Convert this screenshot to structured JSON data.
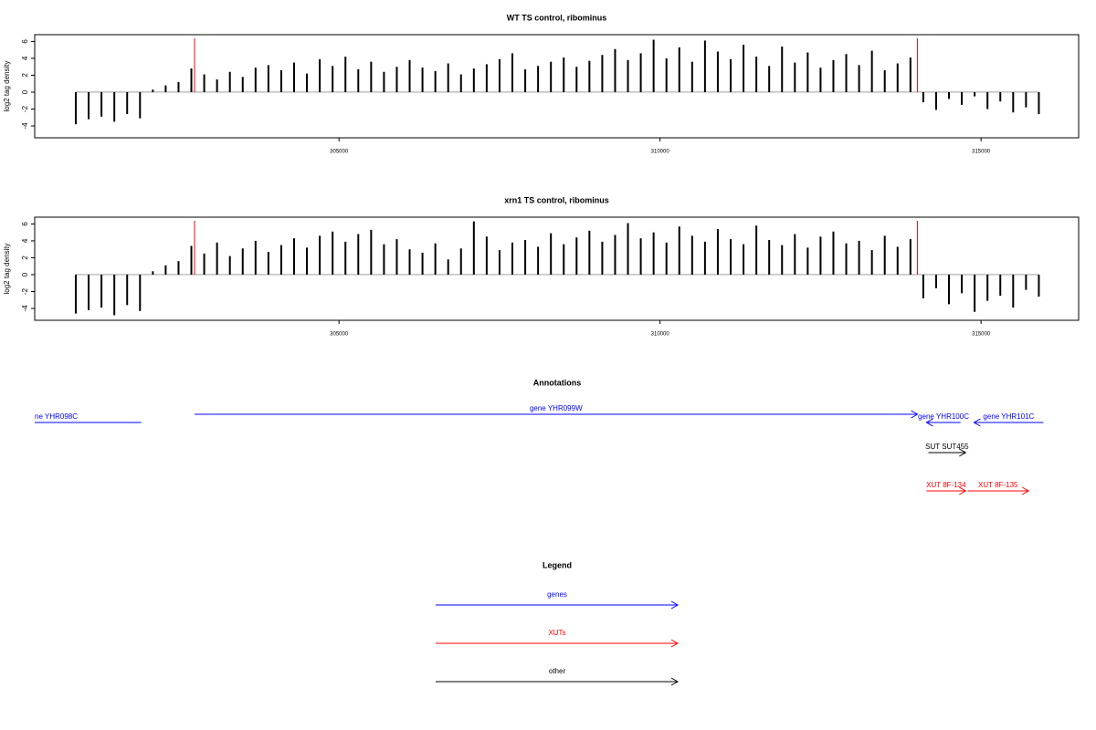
{
  "chart_data": [
    {
      "type": "bar",
      "title": "WT TS control, ribominus",
      "y_label": "log2 tag density",
      "x": [
        300900,
        301100,
        301300,
        301500,
        301700,
        301900,
        302100,
        302300,
        302500,
        302700,
        302900,
        303100,
        303300,
        303500,
        303700,
        303900,
        304100,
        304300,
        304500,
        304700,
        304900,
        305100,
        305300,
        305500,
        305700,
        305900,
        306100,
        306300,
        306500,
        306700,
        306900,
        307100,
        307300,
        307500,
        307700,
        307900,
        308100,
        308300,
        308500,
        308700,
        308900,
        309100,
        309300,
        309500,
        309700,
        309900,
        310100,
        310300,
        310500,
        310700,
        310900,
        311100,
        311300,
        311500,
        311700,
        311900,
        312100,
        312300,
        312500,
        312700,
        312900,
        313100,
        313300,
        313500,
        313700,
        313900,
        314100,
        314300,
        314500,
        314700,
        314900,
        315100,
        315300,
        315500,
        315700,
        315900
      ],
      "values": [
        -3.8,
        -3.2,
        -2.9,
        -3.5,
        -2.6,
        -3.1,
        0.3,
        0.8,
        1.2,
        2.8,
        2.1,
        1.5,
        2.4,
        1.8,
        2.9,
        3.2,
        2.6,
        3.5,
        2.2,
        3.9,
        3.1,
        4.2,
        2.7,
        3.6,
        2.4,
        3.0,
        3.8,
        2.9,
        2.5,
        3.4,
        2.1,
        2.8,
        3.3,
        3.9,
        4.6,
        2.7,
        3.1,
        3.6,
        4.1,
        3.0,
        3.7,
        4.4,
        5.1,
        3.8,
        4.6,
        6.2,
        4.0,
        5.3,
        3.6,
        6.1,
        4.8,
        3.9,
        5.6,
        4.2,
        3.1,
        5.4,
        3.5,
        4.7,
        2.9,
        3.8,
        4.5,
        3.2,
        4.9,
        2.6,
        3.4,
        4.1,
        -1.2,
        -2.1,
        -0.8,
        -1.5,
        -0.5,
        -2.0,
        -1.1,
        -2.4,
        -1.8,
        -2.6
      ],
      "color": "#000000",
      "highlight_x": [
        302750,
        314010
      ],
      "highlight_color": "#ff0000",
      "xlim": [
        300260,
        316520
      ],
      "ylim": [
        -5.4,
        6.8
      ],
      "xticks": [
        305000,
        310000,
        315000
      ],
      "yticks": [
        -4,
        -2,
        0,
        2,
        4,
        6
      ]
    },
    {
      "type": "bar",
      "title": "xrn1 TS control, ribominus",
      "y_label": "log2 tag density",
      "x": [
        300900,
        301100,
        301300,
        301500,
        301700,
        301900,
        302100,
        302300,
        302500,
        302700,
        302900,
        303100,
        303300,
        303500,
        303700,
        303900,
        304100,
        304300,
        304500,
        304700,
        304900,
        305100,
        305300,
        305500,
        305700,
        305900,
        306100,
        306300,
        306500,
        306700,
        306900,
        307100,
        307300,
        307500,
        307700,
        307900,
        308100,
        308300,
        308500,
        308700,
        308900,
        309100,
        309300,
        309500,
        309700,
        309900,
        310100,
        310300,
        310500,
        310700,
        310900,
        311100,
        311300,
        311500,
        311700,
        311900,
        312100,
        312300,
        312500,
        312700,
        312900,
        313100,
        313300,
        313500,
        313700,
        313900,
        314100,
        314300,
        314500,
        314700,
        314900,
        315100,
        315300,
        315500,
        315700,
        315900
      ],
      "values": [
        -4.6,
        -4.2,
        -3.9,
        -4.8,
        -3.6,
        -4.3,
        0.4,
        1.1,
        1.6,
        3.4,
        2.5,
        3.8,
        2.2,
        3.1,
        4.0,
        2.7,
        3.5,
        4.3,
        3.2,
        4.6,
        5.1,
        3.9,
        4.8,
        5.3,
        3.6,
        4.2,
        3.0,
        2.6,
        3.7,
        1.8,
        3.1,
        6.3,
        4.5,
        2.9,
        3.8,
        4.1,
        3.3,
        4.9,
        3.6,
        4.4,
        5.2,
        3.9,
        4.7,
        6.1,
        4.3,
        5.0,
        3.8,
        5.7,
        4.6,
        3.9,
        5.4,
        4.2,
        3.6,
        5.8,
        4.1,
        3.5,
        4.8,
        3.2,
        4.5,
        5.1,
        3.7,
        4.0,
        2.9,
        4.6,
        3.3,
        4.2,
        -2.8,
        -1.6,
        -3.5,
        -2.2,
        -4.4,
        -3.1,
        -2.5,
        -3.9,
        -1.8,
        -2.6
      ],
      "color": "#000000",
      "highlight_x": [
        302750,
        314010
      ],
      "highlight_color": "#ff0000",
      "xlim": [
        300260,
        316520
      ],
      "ylim": [
        -5.4,
        6.8
      ],
      "xticks": [
        305000,
        310000,
        315000
      ],
      "yticks": [
        -4,
        -2,
        0,
        2,
        4,
        6
      ]
    }
  ],
  "annotations": {
    "title": "Annotations",
    "xlim": [
      300260,
      316520
    ],
    "features": [
      {
        "label": "ne YHR098C",
        "start": 300260,
        "end": 301920,
        "color": "#0000ff"
      },
      {
        "label": "gene YHR099W",
        "start": 302750,
        "end": 314010,
        "strand": "+",
        "color": "#0000ff"
      },
      {
        "label": "gene YHR100C",
        "start": 314150,
        "end": 314680,
        "strand": "-",
        "color": "#0000ff"
      },
      {
        "label": "gene YHR101C",
        "start": 314890,
        "end": 315970,
        "strand": "-",
        "color": "#0000ff"
      },
      {
        "label": "SUT SUT455",
        "start": 314180,
        "end": 314760,
        "strand": "+",
        "color": "#000000"
      },
      {
        "label": "XUT 8F-134",
        "start": 314150,
        "end": 314760,
        "strand": "+",
        "color": "#ff0000"
      },
      {
        "label": "XUT 8F-135",
        "start": 314790,
        "end": 315740,
        "strand": "+",
        "color": "#ff0000"
      }
    ]
  },
  "legend": {
    "title": "Legend",
    "items": [
      {
        "label": "genes",
        "color": "#0000ff"
      },
      {
        "label": "XUTs",
        "color": "#ff0000"
      },
      {
        "label": "other",
        "color": "#000000"
      }
    ]
  }
}
